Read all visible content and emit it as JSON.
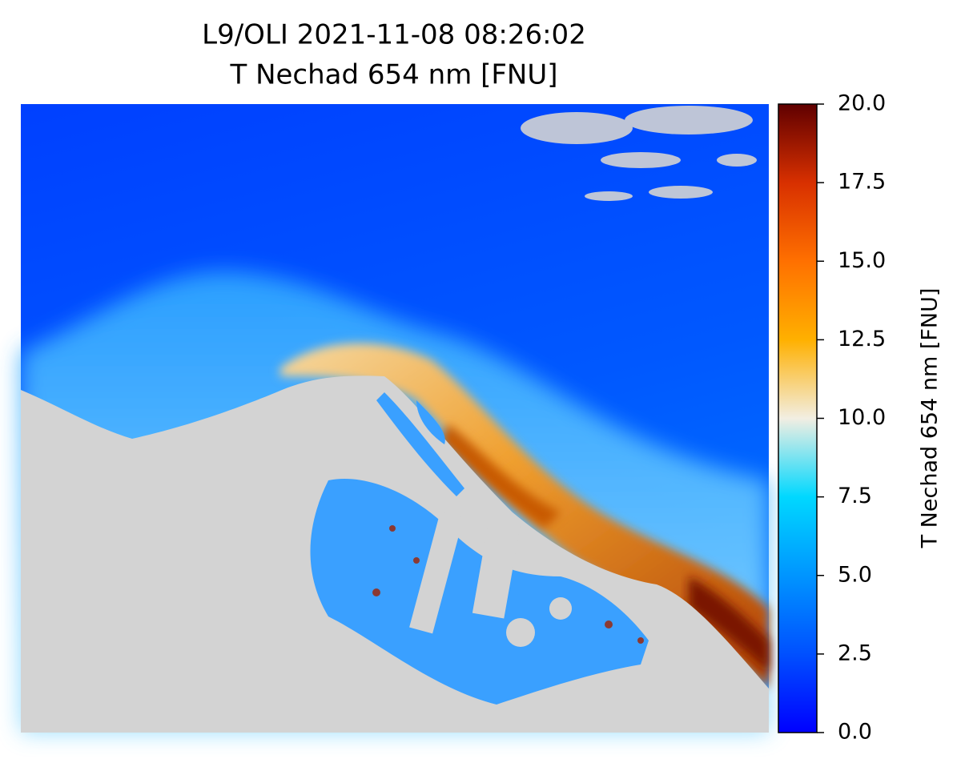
{
  "chart_data": {
    "type": "image",
    "title": "L9/OLI 2021-11-08 08:26:02",
    "subtitle": "T Nechad 654 nm [FNU]",
    "colorbar_label": "T Nechad 654 nm [FNU]",
    "clim": [
      0,
      20
    ],
    "cticks": [
      {
        "value": 0,
        "label": "0.0"
      },
      {
        "value": 2.5,
        "label": "2.5"
      },
      {
        "value": 5,
        "label": "5.0"
      },
      {
        "value": 7.5,
        "label": "7.5"
      },
      {
        "value": 10,
        "label": "10.0"
      },
      {
        "value": 12.5,
        "label": "12.5"
      },
      {
        "value": 15,
        "label": "15.0"
      },
      {
        "value": 17.5,
        "label": "17.5"
      },
      {
        "value": 20,
        "label": "20.0"
      }
    ],
    "colormap": [
      "#0000ff",
      "#0050ff",
      "#0095ff",
      "#00d8ff",
      "#f2eee2",
      "#ffb000",
      "#ff7000",
      "#d83000",
      "#600000"
    ]
  }
}
